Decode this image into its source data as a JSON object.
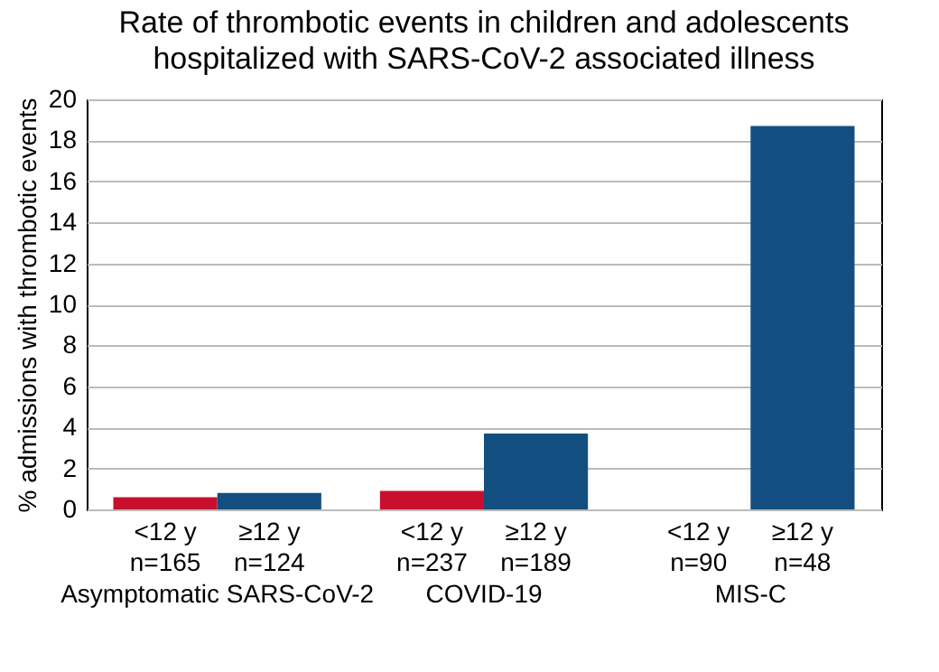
{
  "chart_data": {
    "type": "bar",
    "title": "Rate of thrombotic events in children and adolescents\nhospitalized with SARS-CoV-2 associated illness",
    "ylabel": "% admissions with thrombotic events",
    "categories": [
      "<12 y\nn=165",
      "≥12 y\nn=124",
      "<12 y\nn=237",
      "≥12 y\nn=189",
      "<12 y\nn=90",
      "≥12 y\nn=48"
    ],
    "values": [
      0.6,
      0.8,
      0.9,
      3.7,
      0,
      18.7
    ],
    "colors": [
      "#c8102e",
      "#124f80",
      "#c8102e",
      "#124f80",
      "#c8102e",
      "#124f80"
    ],
    "annotations": [
      "Asymptomatic SARS-CoV-2",
      "COVID-19",
      "MIS-C"
    ],
    "ylim": [
      0,
      20
    ],
    "yticks": [
      0,
      2,
      4,
      6,
      8,
      10,
      12,
      14,
      16,
      18,
      20
    ],
    "grid": "y"
  }
}
